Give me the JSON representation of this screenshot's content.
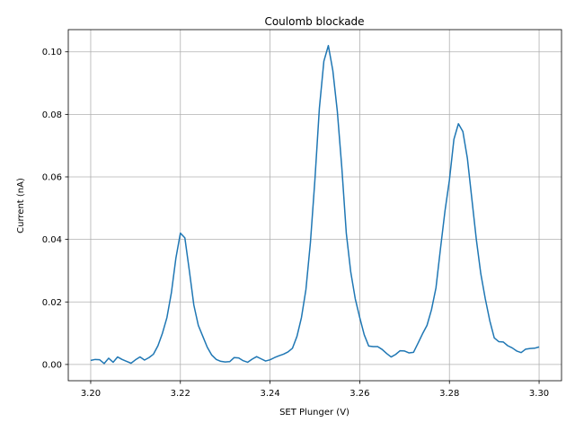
{
  "chart_data": {
    "type": "line",
    "title": "Coulomb blockade",
    "xlabel": "SET Plunger  (V)",
    "ylabel": "Current (nA)",
    "xlim": [
      3.195,
      3.305
    ],
    "ylim": [
      -0.0052,
      0.1071
    ],
    "grid": true,
    "color": "#1f77b4",
    "xticks": [
      3.2,
      3.22,
      3.24,
      3.26,
      3.28,
      3.3
    ],
    "xtick_labels": [
      "3.20",
      "3.22",
      "3.24",
      "3.26",
      "3.28",
      "3.30"
    ],
    "yticks": [
      0.0,
      0.02,
      0.04,
      0.06,
      0.08,
      0.1
    ],
    "ytick_labels": [
      "0.00",
      "0.02",
      "0.04",
      "0.06",
      "0.08",
      "0.10"
    ],
    "series": [
      {
        "x": [
          3.2,
          3.201,
          3.202,
          3.203,
          3.204,
          3.205,
          3.206,
          3.207,
          3.208,
          3.209,
          3.21,
          3.211,
          3.212,
          3.213,
          3.214,
          3.215,
          3.216,
          3.217,
          3.218,
          3.219,
          3.22,
          3.221,
          3.222,
          3.223,
          3.224,
          3.225,
          3.226,
          3.227,
          3.228,
          3.229,
          3.23,
          3.231,
          3.232,
          3.233,
          3.234,
          3.235,
          3.236,
          3.237,
          3.238,
          3.239,
          3.24,
          3.241,
          3.242,
          3.243,
          3.244,
          3.245,
          3.246,
          3.247,
          3.248,
          3.249,
          3.25,
          3.251,
          3.252,
          3.253,
          3.254,
          3.255,
          3.256,
          3.257,
          3.258,
          3.259,
          3.26,
          3.261,
          3.262,
          3.263,
          3.264,
          3.265,
          3.266,
          3.267,
          3.268,
          3.269,
          3.27,
          3.271,
          3.272,
          3.273,
          3.274,
          3.275,
          3.276,
          3.277,
          3.278,
          3.279,
          3.28,
          3.281,
          3.282,
          3.283,
          3.284,
          3.285,
          3.286,
          3.287,
          3.288,
          3.289,
          3.29,
          3.291,
          3.292,
          3.293,
          3.294,
          3.295,
          3.296,
          3.297,
          3.298,
          3.299,
          3.3
        ],
        "y": [
          0.0013,
          0.0016,
          0.0015,
          0.0003,
          0.002,
          0.0007,
          0.0024,
          0.0016,
          0.001,
          0.0004,
          0.0015,
          0.0024,
          0.0014,
          0.0022,
          0.0033,
          0.006,
          0.01,
          0.015,
          0.023,
          0.034,
          0.042,
          0.0405,
          0.03,
          0.019,
          0.0125,
          0.009,
          0.0055,
          0.003,
          0.0016,
          0.001,
          0.0008,
          0.0009,
          0.0022,
          0.0021,
          0.0012,
          0.0007,
          0.0017,
          0.0025,
          0.0018,
          0.0011,
          0.0015,
          0.0022,
          0.0028,
          0.0033,
          0.004,
          0.0052,
          0.009,
          0.015,
          0.024,
          0.039,
          0.059,
          0.082,
          0.097,
          0.102,
          0.094,
          0.081,
          0.063,
          0.042,
          0.0295,
          0.021,
          0.015,
          0.0095,
          0.0059,
          0.0057,
          0.0057,
          0.0048,
          0.0035,
          0.0024,
          0.0032,
          0.0044,
          0.0043,
          0.0037,
          0.0039,
          0.0068,
          0.0098,
          0.0125,
          0.0175,
          0.0245,
          0.037,
          0.049,
          0.059,
          0.072,
          0.077,
          0.0745,
          0.066,
          0.053,
          0.04,
          0.029,
          0.021,
          0.014,
          0.0085,
          0.0073,
          0.0072,
          0.006,
          0.0053,
          0.0043,
          0.0038,
          0.0049,
          0.0051,
          0.0052,
          0.0056
        ]
      }
    ]
  }
}
